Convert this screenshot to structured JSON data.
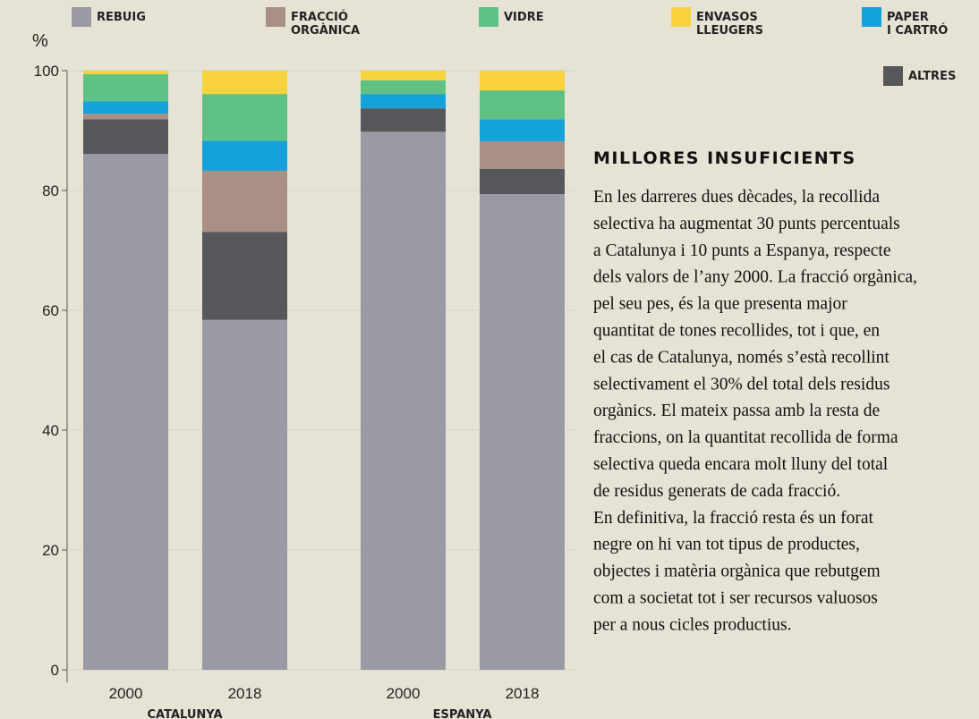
{
  "chart_data": {
    "type": "stacked_bar",
    "ylabel": "%",
    "categories": [
      "2000",
      "2018",
      "2000",
      "2018"
    ],
    "groups": [
      "CATALUNYA",
      "ESPANYA"
    ],
    "ylim": [
      0,
      100
    ],
    "yticks": [
      0,
      20,
      40,
      60,
      80,
      100
    ],
    "grid": true,
    "series": [
      {
        "name": "REBUIG",
        "color": "#9a9aa5",
        "values": [
          86.1,
          58.4,
          89.8,
          79.4
        ]
      },
      {
        "name": "FRACCIÓ\nORGÀNICA",
        "color": "#a98f86",
        "values": [
          0.9,
          10.2,
          0,
          4.6
        ]
      },
      {
        "name": "VIDRE",
        "color": "#5fc183",
        "values": [
          4.5,
          7.8,
          2.3,
          4.8
        ]
      },
      {
        "name": "ENVASOS\nLLEUGERS",
        "color": "#f6d23d",
        "values": [
          0.6,
          3.9,
          1.6,
          3.3
        ]
      },
      {
        "name": "PAPER\nI CARTRÓ",
        "color": "#15a1da",
        "values": [
          2.1,
          5.0,
          2.4,
          3.7
        ]
      },
      {
        "name": "ALTRES",
        "color": "#55575b",
        "values": [
          5.8,
          14.7,
          3.9,
          4.2
        ]
      }
    ]
  },
  "article": {
    "title": "MILLORES INSUFICIENTS",
    "lines": [
      "En les darreres dues dècades, la recollida",
      "selectiva ha augmentat 30 punts percentuals",
      "a Catalunya i 10 punts a Espanya, respecte",
      "dels valors de l’any 2000. La fracció orgànica,",
      "pel seu pes, és la que presenta major",
      "quantitat de tones recollides, tot i que, en",
      "el cas de Catalunya, només s’està recollint",
      "selectivament el 30% del total dels residus",
      "orgànics. El mateix passa amb la resta de",
      "fraccions, on la quantitat recollida de forma",
      "selectiva queda encara molt lluny del total",
      "de residus generats de cada fracció.",
      "En definitiva, la fracció resta és un forat",
      "negre on hi van tot tipus de productes,",
      "objectes i matèria orgànica que rebutgem",
      "com a societat tot i ser recursos valuosos",
      "per a nous cicles productius."
    ]
  }
}
